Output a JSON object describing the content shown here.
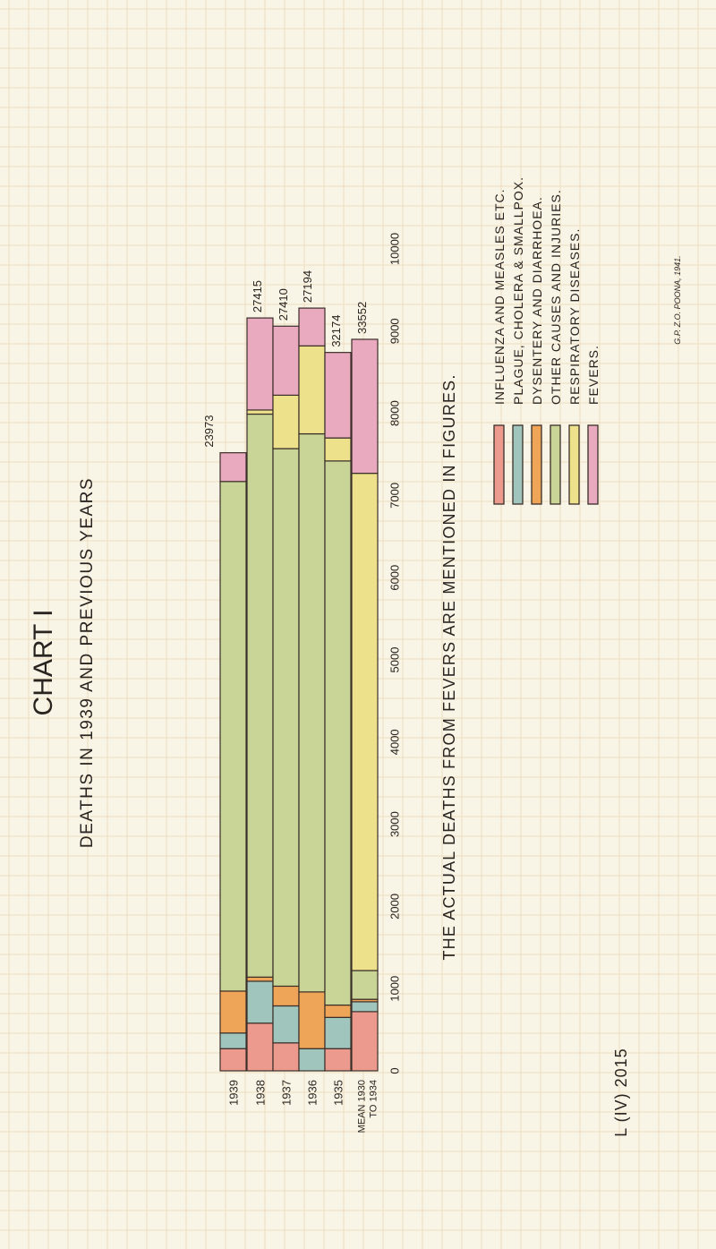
{
  "page": {
    "chart_label": "CHART I",
    "caption": "THE ACTUAL DEATHS FROM FEVERS ARE MENTIONED IN FIGURES.",
    "reference": "L (IV) 2015",
    "printer": "G.P. Z.O. POONA, 1941."
  },
  "colors": {
    "influenza": "#ec9a8e",
    "plague": "#9fc5bc",
    "dysentery": "#eea558",
    "other": "#c8d596",
    "respiratory": "#ede18c",
    "fevers": "#e9a9bf",
    "grid": "#eedec0",
    "outline": "#3a2e28"
  },
  "chart_data": {
    "type": "bar",
    "orientation": "horizontal",
    "stacked": true,
    "title": "DEATHS IN 1939 AND PREVIOUS YEARS",
    "xlim": [
      0,
      10000
    ],
    "xticks": [
      0,
      1000,
      2000,
      3000,
      4000,
      5000,
      6000,
      7000,
      8000,
      9000,
      10000
    ],
    "categories": [
      "1939",
      "1938",
      "1937",
      "1936",
      "1935",
      "MEAN 1930 TO 1934"
    ],
    "series": [
      {
        "name": "INFLUENZA AND MEASLES ETC.",
        "key": "influenza",
        "values": [
          270,
          580,
          340,
          0,
          270,
          720
        ]
      },
      {
        "name": "PLAGUE, CHOLERA & SMALLPOX.",
        "key": "plague",
        "values": [
          190,
          510,
          450,
          270,
          380,
          120
        ]
      },
      {
        "name": "DYSENTERY AND DIARRHOEA.",
        "key": "dysentery",
        "values": [
          510,
          50,
          240,
          690,
          150,
          30
        ]
      },
      {
        "name": "OTHER CAUSES AND INJURIES.",
        "key": "other",
        "values": [
          6200,
          6850,
          6540,
          6790,
          6620,
          350
        ]
      },
      {
        "name": "RESPIRATORY DISEASES.",
        "key": "respiratory",
        "values": [
          0,
          50,
          650,
          1070,
          280,
          6050
        ]
      },
      {
        "name": "FEVERS.",
        "key": "fevers",
        "values": [
          350,
          1120,
          840,
          460,
          1040,
          1630
        ]
      }
    ],
    "annotations": [
      "23973",
      "27415",
      "27410",
      "27194",
      "32174",
      "33552"
    ]
  }
}
